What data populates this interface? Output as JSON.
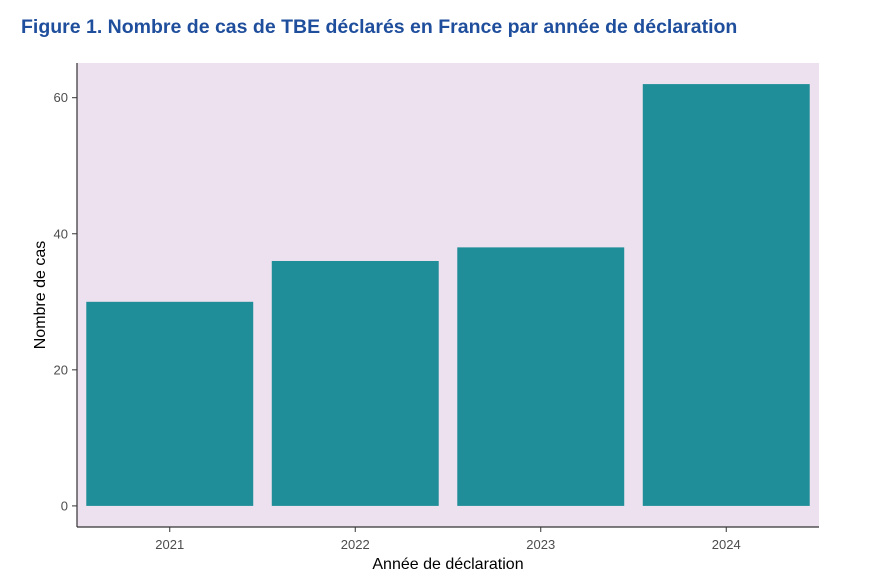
{
  "figure": {
    "title": "Figure 1. Nombre de cas de TBE déclarés en France par année de déclaration"
  },
  "colors": {
    "title": "#1f4e9c",
    "panel_background": "#ede1ef",
    "bar_fill": "#1f8e98",
    "axis_line": "#333333",
    "tick_text": "#4d4d4d"
  },
  "chart_data": {
    "type": "bar",
    "title": "",
    "categories": [
      "2021",
      "2022",
      "2023",
      "2024"
    ],
    "values": [
      30,
      36,
      38,
      62
    ],
    "xlabel": "Année de déclaration",
    "ylabel": "Nombre de cas",
    "ylim": [
      -3.1,
      65.1
    ],
    "yticks": [
      0,
      20,
      40,
      60
    ],
    "grid": false,
    "legend": "none"
  }
}
